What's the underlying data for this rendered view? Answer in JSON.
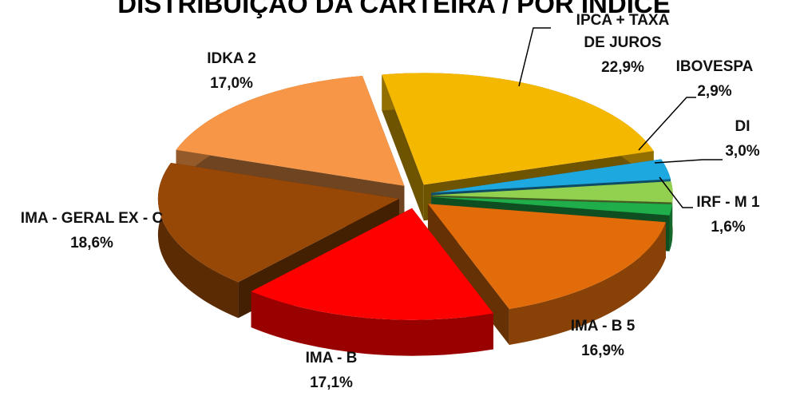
{
  "chart_data": {
    "type": "pie3d",
    "title": "DISTRIBUIÇÃO DA CARTEIRA / POR ÍNDICE",
    "categories": [
      "IPCA + TAXA DE JUROS",
      "IBOVESPA",
      "DI",
      "IRF - M 1",
      "IMA - B 5",
      "IMA - B",
      "IMA - GERAL EX - C",
      "IDKA 2"
    ],
    "values": [
      22.9,
      2.9,
      3.0,
      1.6,
      16.9,
      17.1,
      18.6,
      17.0
    ],
    "value_labels": [
      "22,9%",
      "2,9%",
      "3,0%",
      "1,6%",
      "16,9%",
      "17,1%",
      "18,6%",
      "17,0%"
    ],
    "colors": [
      "#f5b800",
      "#1ea8e0",
      "#92d050",
      "#1fae4a",
      "#e36c0a",
      "#ff0000",
      "#974706",
      "#f79646"
    ]
  }
}
